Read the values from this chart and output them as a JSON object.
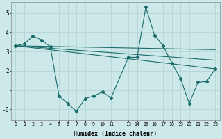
{
  "xlabel": "Humidex (Indice chaleur)",
  "background_color": "#cde8e8",
  "grid_color": "#b8d8d8",
  "line_color": "#1a6b6b",
  "xlim": [
    -0.5,
    23.5
  ],
  "ylim": [
    -0.55,
    5.55
  ],
  "xticks": [
    0,
    1,
    2,
    3,
    4,
    5,
    6,
    7,
    8,
    9,
    10,
    11,
    13,
    14,
    15,
    16,
    17,
    18,
    19,
    20,
    21,
    22,
    23
  ],
  "yticks": [
    0,
    1,
    2,
    3,
    4,
    5
  ],
  "ytick_labels": [
    "-0",
    "1",
    "2",
    "3",
    "4",
    "5"
  ],
  "main_line": {
    "x": [
      0,
      1,
      2,
      3,
      4,
      5,
      6,
      7,
      8,
      9,
      10,
      11,
      13,
      14,
      15,
      16,
      17,
      18,
      19,
      20,
      21,
      22,
      23
    ],
    "y": [
      3.3,
      3.4,
      3.8,
      3.6,
      3.25,
      0.7,
      0.3,
      -0.1,
      0.55,
      0.7,
      0.9,
      0.6,
      2.7,
      2.7,
      5.3,
      3.85,
      3.3,
      2.4,
      1.6,
      0.3,
      1.4,
      1.45,
      2.1
    ]
  },
  "trend_lines": [
    {
      "x": [
        0,
        23
      ],
      "y": [
        3.3,
        2.1
      ]
    },
    {
      "x": [
        0,
        23
      ],
      "y": [
        3.3,
        2.55
      ]
    },
    {
      "x": [
        0,
        23
      ],
      "y": [
        3.3,
        3.1
      ]
    }
  ]
}
